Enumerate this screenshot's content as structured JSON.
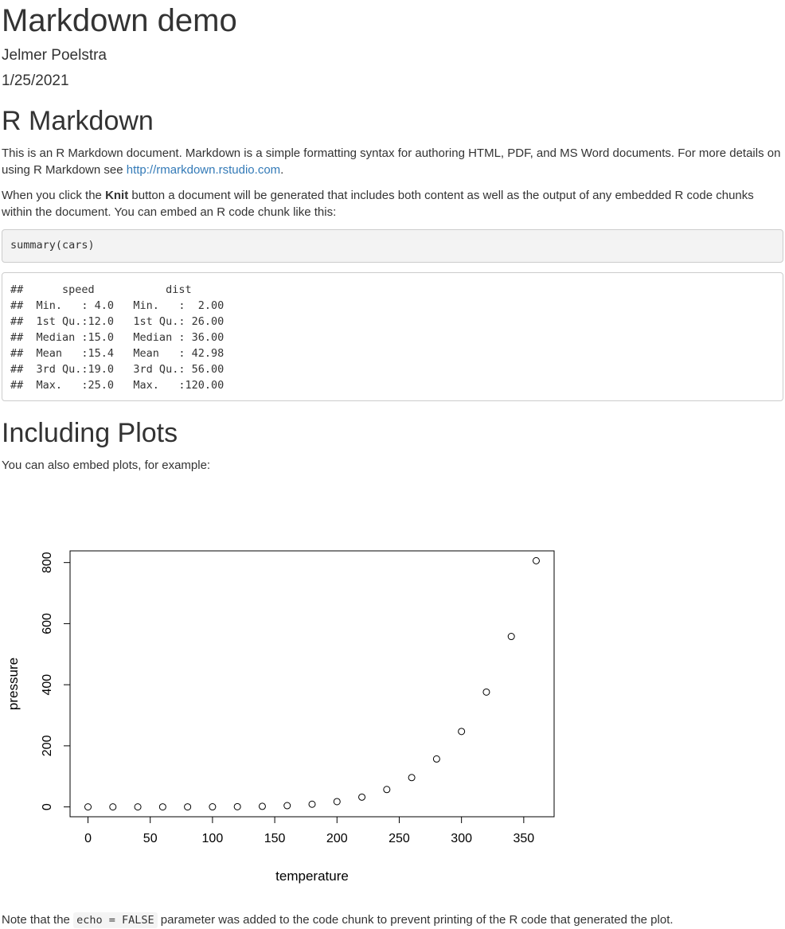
{
  "header": {
    "title": "Markdown demo",
    "author": "Jelmer Poelstra",
    "date": "1/25/2021"
  },
  "section_rmd": {
    "heading": "R Markdown",
    "p1_text": "This is an R Markdown document. Markdown is a simple formatting syntax for authoring HTML, PDF, and MS Word documents. For more details on using R Markdown see ",
    "p1_link": "http://rmarkdown.rstudio.com",
    "p1_end": ".",
    "p2_before": "When you click the ",
    "p2_bold": "Knit",
    "p2_after": " button a document will be generated that includes both content as well as the output of any embedded R code chunks within the document. You can embed an R code chunk like this:",
    "code_input": "summary(cars)",
    "code_output": "##      speed           dist       \n##  Min.   : 4.0   Min.   :  2.00  \n##  1st Qu.:12.0   1st Qu.: 26.00  \n##  Median :15.0   Median : 36.00  \n##  Mean   :15.4   Mean   : 42.98  \n##  3rd Qu.:19.0   3rd Qu.: 56.00  \n##  Max.   :25.0   Max.   :120.00  "
  },
  "section_plots": {
    "heading": "Including Plots",
    "intro": "You can also embed plots, for example:",
    "note_before": "Note that the ",
    "note_code": "echo = FALSE",
    "note_after": " parameter was added to the code chunk to prevent printing of the R code that generated the plot."
  },
  "chart_data": {
    "type": "scatter",
    "xlabel": "temperature",
    "ylabel": "pressure",
    "x": [
      0,
      20,
      40,
      60,
      80,
      100,
      120,
      140,
      160,
      180,
      200,
      220,
      240,
      260,
      280,
      300,
      320,
      340,
      360
    ],
    "y": [
      0.0002,
      0.0012,
      0.006,
      0.03,
      0.09,
      0.27,
      0.75,
      1.85,
      4.2,
      8.8,
      17.3,
      32.1,
      57,
      96,
      157,
      247,
      376,
      558,
      806
    ],
    "xticks": [
      0,
      50,
      100,
      150,
      200,
      250,
      300,
      350
    ],
    "yticks": [
      0,
      200,
      400,
      600,
      800
    ],
    "xlim": [
      -14.4,
      374.4
    ],
    "ylim": [
      -32.24,
      838.24
    ],
    "marker": "open-circle",
    "grid": false,
    "color": "#000000"
  }
}
